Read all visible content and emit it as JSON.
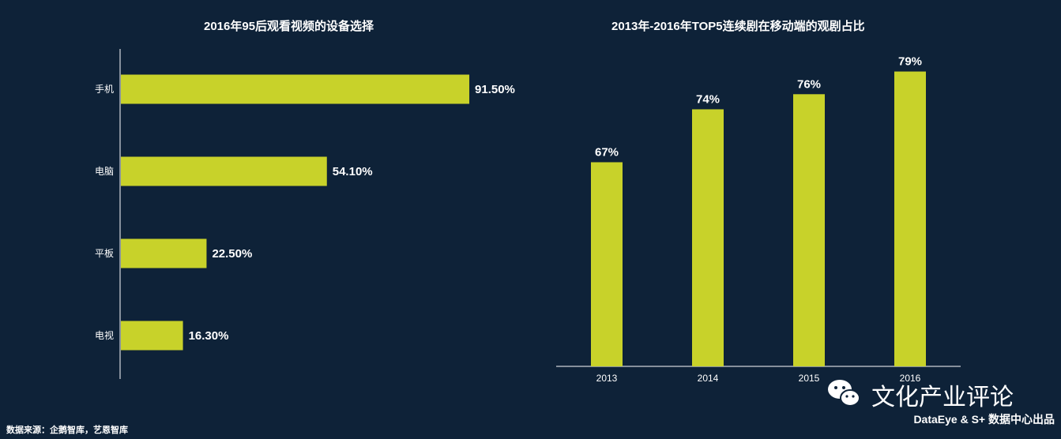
{
  "chart_data": [
    {
      "type": "bar",
      "orientation": "horizontal",
      "title": "2016年95后观看视频的设备选择",
      "categories": [
        "手机",
        "电脑",
        "平板",
        "电视"
      ],
      "values": [
        91.5,
        54.1,
        22.5,
        16.3
      ],
      "labels": [
        "91.50%",
        "54.10%",
        "22.50%",
        "16.30%"
      ],
      "unit": "%",
      "xlim": [
        0,
        100
      ],
      "bar_color": "#c8d22a"
    },
    {
      "type": "bar",
      "title": "2013年-2016年TOP5连续剧在移动端的观剧占比",
      "categories": [
        "2013",
        "2014",
        "2015",
        "2016"
      ],
      "values": [
        67,
        74,
        76,
        79
      ],
      "labels": [
        "67%",
        "74%",
        "76%",
        "79%"
      ],
      "unit": "%",
      "ylim": [
        40,
        80
      ],
      "bar_color": "#c8d22a"
    }
  ],
  "footer": {
    "source": "数据来源：企鹅智库，艺恩智库"
  },
  "brand": {
    "icon": "wechat-icon",
    "title": "文化产业评论",
    "subtitle": "DataEye & S+ 数据中心出品"
  },
  "colors": {
    "background": "#0e2238",
    "bar": "#c8d22a",
    "text": "#ffffff"
  }
}
